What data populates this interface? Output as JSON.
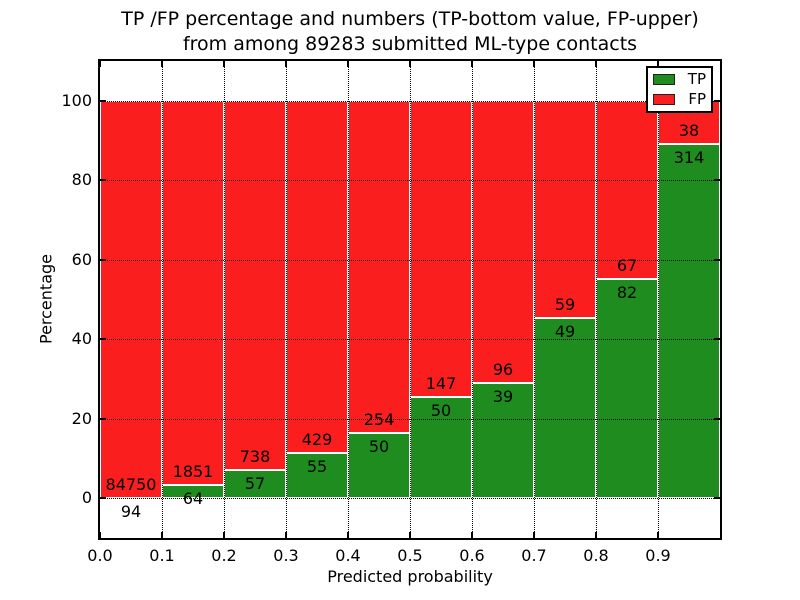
{
  "chart": {
    "title_line1": "TP /FP percentage and numbers (TP-bottom value, FP-upper)",
    "title_line2": "from among 89283 submitted ML-type contacts",
    "xlabel": "Predicted probability",
    "ylabel": "Percentage"
  },
  "chart_data": {
    "type": "bar",
    "stacked": true,
    "normalized": "each bin scaled to 100%, bar labels show raw counts (TP bottom, FP upper)",
    "title": "TP /FP percentage and numbers (TP-bottom value, FP-upper) from among 89283 submitted ML-type contacts",
    "xlabel": "Predicted probability",
    "ylabel": "Percentage",
    "total_contacts": 89283,
    "bin_width": 0.1,
    "bin_starts": [
      0.0,
      0.1,
      0.2,
      0.3,
      0.4,
      0.5,
      0.6,
      0.7,
      0.8,
      0.9
    ],
    "series": [
      {
        "name": "TP",
        "color": "#1e8c1e",
        "counts": [
          94,
          64,
          57,
          55,
          50,
          50,
          39,
          49,
          82,
          314
        ]
      },
      {
        "name": "FP",
        "color": "#fa1e1e",
        "counts": [
          84750,
          1851,
          738,
          429,
          254,
          147,
          96,
          59,
          67,
          38
        ]
      }
    ],
    "tp_percent_by_bin": [
      0.11,
      3.34,
      7.17,
      11.36,
      16.45,
      25.38,
      28.89,
      45.37,
      55.03,
      89.2
    ],
    "xticks": [
      0.0,
      0.1,
      0.2,
      0.3,
      0.4,
      0.5,
      0.6,
      0.7,
      0.8,
      0.9
    ],
    "xtick_labels": [
      "0.0",
      "0.1",
      "0.2",
      "0.3",
      "0.4",
      "0.5",
      "0.6",
      "0.7",
      "0.8",
      "0.9"
    ],
    "yticks": [
      0,
      20,
      40,
      60,
      80,
      100
    ],
    "ytick_labels": [
      "0",
      "20",
      "40",
      "60",
      "80",
      "100"
    ],
    "xlim": [
      0.0,
      1.0
    ],
    "ylim": [
      -10,
      110
    ],
    "grid": {
      "visible": true,
      "style": "dotted",
      "color": "#000000",
      "above_bars": true
    },
    "bar_edge_color": "#ffffff",
    "label_color": "#000000",
    "legend": {
      "position": "upper right",
      "entries": [
        "TP",
        "FP"
      ]
    }
  }
}
